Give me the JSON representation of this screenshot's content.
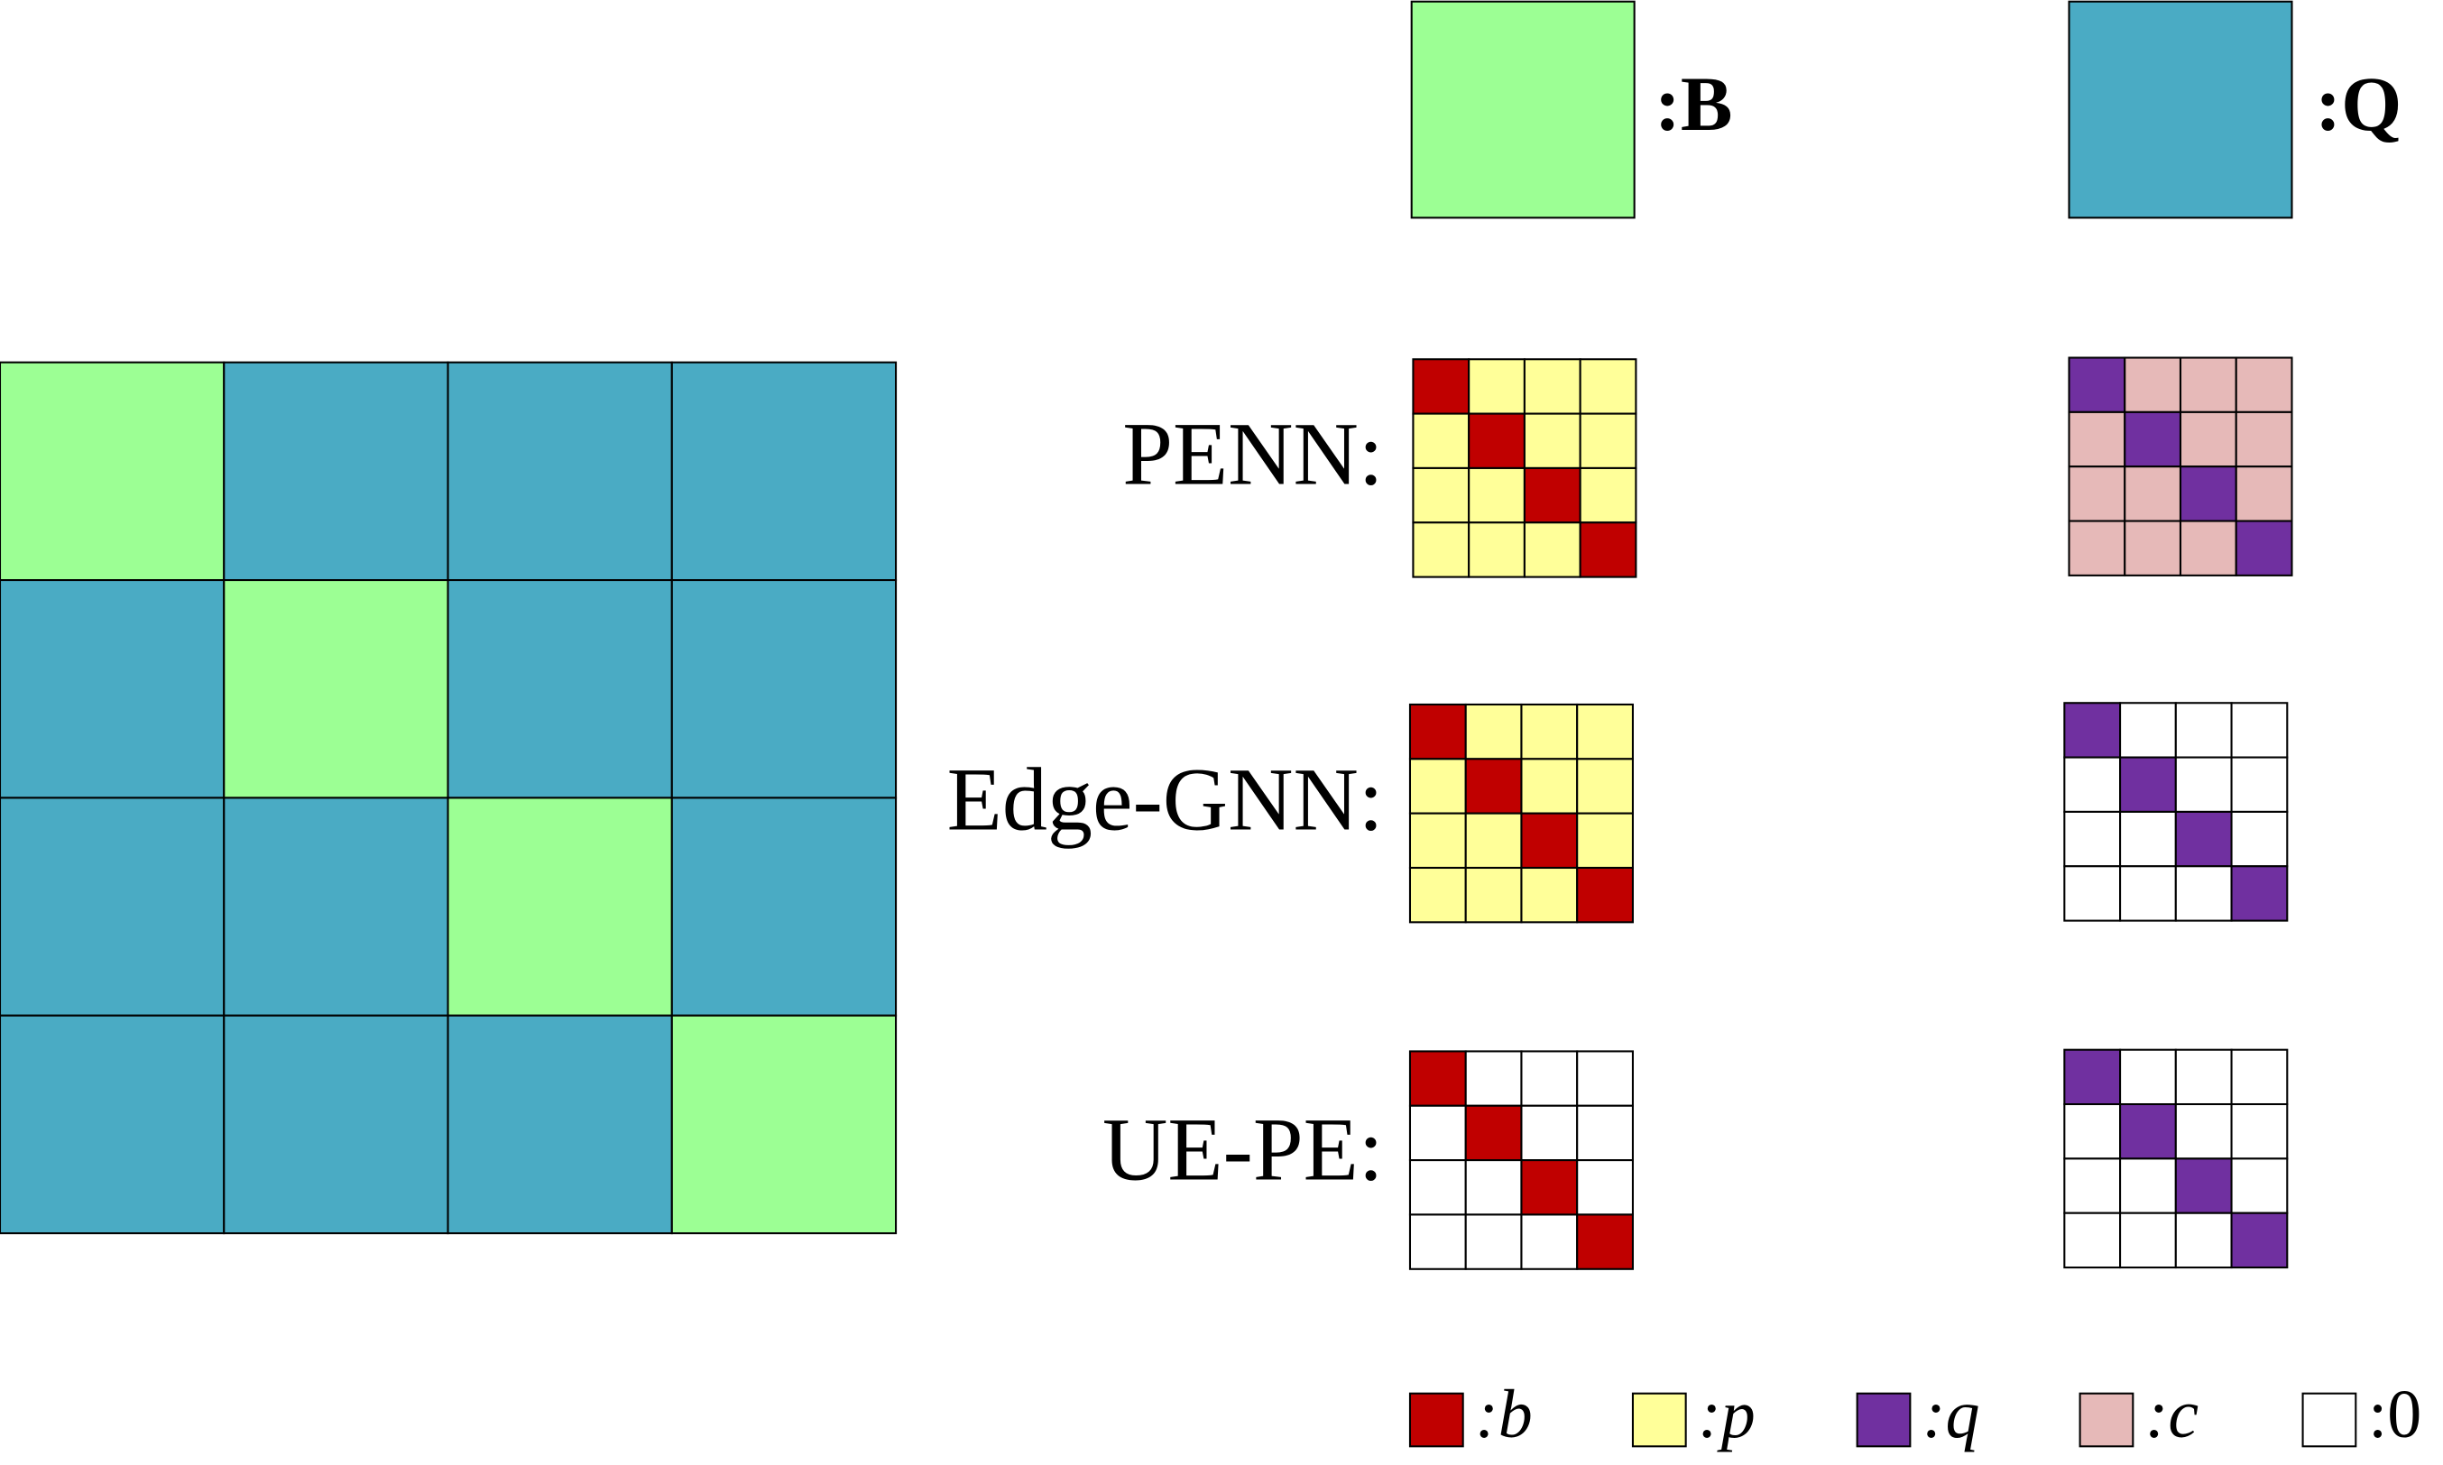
{
  "legend_top": [
    ":B",
    ":Q"
  ],
  "rows": [
    "PENN:",
    "Edge-GNN:",
    "UE-PE:"
  ],
  "legend_bottom": [
    ":b",
    ":p",
    ":q",
    ":c",
    ":0"
  ]
}
